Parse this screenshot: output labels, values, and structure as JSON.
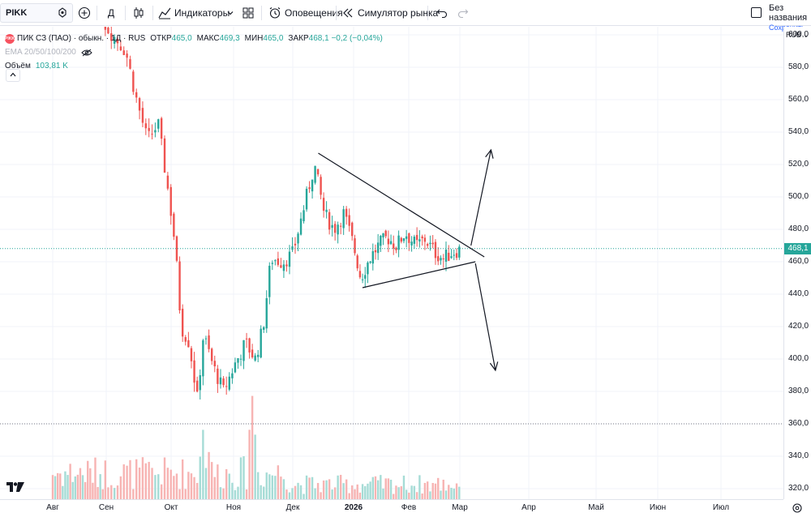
{
  "toolbar": {
    "symbol": "PIKK",
    "interval": "Д",
    "indicators_label": "Индикаторы",
    "alerts_label": "Оповещения",
    "replay_label": "Симулятор рынка",
    "layout_name": "Без названия",
    "save_status": "Сохранить"
  },
  "legend": {
    "title": "ПИК СЗ (ПАО) · обыкн. · 1Д · RUS",
    "logo_text": "PIKK",
    "ohlc": [
      {
        "k": "ОТКР",
        "v": "465,0"
      },
      {
        "k": "МАКС",
        "v": "469,3"
      },
      {
        "k": "МИН",
        "v": "465,0"
      },
      {
        "k": "ЗАКР",
        "v": "468,1 −0,2 (−0,04%)"
      }
    ],
    "ema_label": "EMA 20/50/100/200",
    "volume_label": "Объём",
    "volume_value": "103,81 K"
  },
  "price_axis": {
    "currency": "RUB",
    "ticks": [
      "600,0",
      "580,0",
      "560,0",
      "540,0",
      "520,0",
      "500,0",
      "480,0",
      "460,0",
      "440,0",
      "420,0",
      "400,0",
      "380,0",
      "360,0",
      "340,0",
      "320,0"
    ],
    "last_price": "468,1"
  },
  "time_axis": {
    "ticks": [
      "Авг",
      "Сен",
      "Окт",
      "Ноя",
      "Дек",
      "2026",
      "Фев",
      "Мар",
      "Апр",
      "Май",
      "Июн",
      "Июл"
    ]
  },
  "colors": {
    "up": "#26a69a",
    "down": "#ef5350",
    "up_volume": "#a6dcd6",
    "down_volume": "#f7b4b3",
    "drawing": "#131722",
    "grid": "#f0f3fa"
  },
  "chart_data": {
    "type": "candlestick",
    "title": "ПИК СЗ (ПАО) · обыкн. · 1Д · RUS",
    "ylim": [
      310,
      615
    ],
    "x_categories": [
      "Авг",
      "Сен",
      "Окт",
      "Ноя",
      "Дек",
      "2026",
      "Фев",
      "Мар",
      "Апр",
      "Май",
      "Июн",
      "Июл"
    ],
    "close_path": [
      {
        "date": "2025-08-01",
        "close": 640
      },
      {
        "date": "2025-08-20",
        "close": 640
      },
      {
        "date": "2025-09-01",
        "close": 605
      },
      {
        "date": "2025-09-10",
        "close": 590
      },
      {
        "date": "2025-09-15",
        "close": 560
      },
      {
        "date": "2025-09-20",
        "close": 535
      },
      {
        "date": "2025-09-25",
        "close": 545
      },
      {
        "date": "2025-09-30",
        "close": 500
      },
      {
        "date": "2025-10-03",
        "close": 470
      },
      {
        "date": "2025-10-06",
        "close": 420
      },
      {
        "date": "2025-10-10",
        "close": 410
      },
      {
        "date": "2025-10-14",
        "close": 375
      },
      {
        "date": "2025-10-17",
        "close": 415
      },
      {
        "date": "2025-10-22",
        "close": 395
      },
      {
        "date": "2025-10-27",
        "close": 380
      },
      {
        "date": "2025-11-01",
        "close": 395
      },
      {
        "date": "2025-11-07",
        "close": 410
      },
      {
        "date": "2025-11-12",
        "close": 400
      },
      {
        "date": "2025-11-16",
        "close": 420
      },
      {
        "date": "2025-11-20",
        "close": 462
      },
      {
        "date": "2025-11-26",
        "close": 460
      },
      {
        "date": "2025-12-01",
        "close": 465
      },
      {
        "date": "2025-12-06",
        "close": 490
      },
      {
        "date": "2025-12-12",
        "close": 520
      },
      {
        "date": "2025-12-17",
        "close": 490
      },
      {
        "date": "2025-12-22",
        "close": 480
      },
      {
        "date": "2025-12-27",
        "close": 490
      },
      {
        "date": "2026-01-01",
        "close": 470
      },
      {
        "date": "2026-01-05",
        "close": 450
      },
      {
        "date": "2026-01-10",
        "close": 462
      },
      {
        "date": "2026-01-15",
        "close": 470
      },
      {
        "date": "2026-01-20",
        "close": 475
      },
      {
        "date": "2026-01-25",
        "close": 470
      },
      {
        "date": "2026-01-30",
        "close": 478
      },
      {
        "date": "2026-02-05",
        "close": 470
      },
      {
        "date": "2026-02-10",
        "close": 474
      },
      {
        "date": "2026-02-15",
        "close": 466
      },
      {
        "date": "2026-02-20",
        "close": 462
      },
      {
        "date": "2026-02-25",
        "close": 466
      },
      {
        "date": "2026-03-02",
        "close": 468.1
      }
    ],
    "drawings": {
      "triangle_upper": [
        {
          "date": "2025-12-14",
          "price": 527
        },
        {
          "date": "2026-03-12",
          "price": 463
        }
      ],
      "triangle_lower": [
        {
          "date": "2026-01-06",
          "price": 444
        },
        {
          "date": "2026-03-08",
          "price": 460
        }
      ],
      "arrow_up": [
        {
          "date": "2026-03-06",
          "price": 470
        },
        {
          "date": "2026-03-15",
          "price": 529
        }
      ],
      "arrow_down": [
        {
          "date": "2026-03-08",
          "price": 459
        },
        {
          "date": "2026-03-17",
          "price": 393
        }
      ]
    },
    "dotted_levels": [
      468.1,
      360
    ]
  }
}
